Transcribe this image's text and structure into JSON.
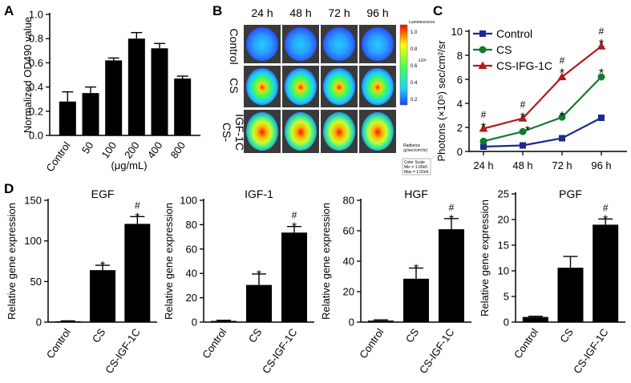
{
  "panel_labels": {
    "a": "A",
    "b": "B",
    "c": "C",
    "d": "D"
  },
  "panel_b": {
    "time_labels": [
      "24 h",
      "48 h",
      "72 h",
      "96 h"
    ],
    "row_labels": [
      "Control",
      "CS",
      "CS-IGF-1C"
    ],
    "row_label_lines": [
      [
        "Control"
      ],
      [
        "CS"
      ],
      [
        "CS-",
        "IGF-1C"
      ]
    ],
    "colorbar_ticks": [
      "1.0",
      "0.8",
      "0.6",
      "0.4",
      "0.2"
    ],
    "colorbar_title": "Luminescence",
    "colorbar_scale_text": "x10⁶",
    "colorbar_units": [
      "Radiance",
      "(p/sec/cm²/sr)"
    ],
    "colorbar_box": [
      "Color Scale",
      "Min = 1.00e5",
      "Max = 1.02e6"
    ]
  },
  "chart_data": [
    {
      "id": "A",
      "type": "bar",
      "title": "",
      "ylabel": "Normalized OD490 value",
      "xlabel": "(μg/mL)",
      "categories": [
        "Control",
        "50",
        "100",
        "200",
        "400",
        "800"
      ],
      "values": [
        0.28,
        0.35,
        0.62,
        0.8,
        0.72,
        0.47
      ],
      "errors": [
        0.08,
        0.05,
        0.02,
        0.05,
        0.04,
        0.02
      ],
      "ylim": [
        0,
        1.0
      ],
      "yticks": [
        "0.0",
        "0.2",
        "0.4",
        "0.6",
        "0.8",
        "1.0"
      ],
      "ytick_values": [
        0,
        0.2,
        0.4,
        0.6,
        0.8,
        1.0
      ]
    },
    {
      "id": "C",
      "type": "line",
      "ylabel": "Photons (×10⁵) sec/cm²/sr",
      "categories": [
        "24 h",
        "48 h",
        "72 h",
        "96 h"
      ],
      "ylim": [
        0,
        10
      ],
      "yticks": [
        "0",
        "2",
        "4",
        "6",
        "8",
        "10"
      ],
      "ytick_values": [
        0,
        2,
        4,
        6,
        8,
        10
      ],
      "series": [
        {
          "name": "Control",
          "color": "#1a2a8c",
          "marker": "square",
          "values": [
            0.4,
            0.5,
            1.1,
            2.8
          ],
          "errors": [
            0.05,
            0.05,
            0.1,
            0.15
          ]
        },
        {
          "name": "CS",
          "color": "#137a2f",
          "marker": "circle",
          "values": [
            0.85,
            1.65,
            2.85,
            6.2
          ],
          "errors": [
            0.05,
            0.1,
            0.1,
            0.3
          ]
        },
        {
          "name": "CS-IFG-1C",
          "color": "#b31b1b",
          "marker": "triangle",
          "values": [
            1.9,
            2.75,
            6.2,
            8.75
          ],
          "errors": [
            0.1,
            0.1,
            0.3,
            0.2
          ]
        }
      ],
      "annotations": [
        {
          "x": "24 h",
          "series": "CS-IFG-1C",
          "marks": [
            "#",
            "*"
          ]
        },
        {
          "x": "48 h",
          "series": "CS-IFG-1C",
          "marks": [
            "#",
            "*"
          ]
        },
        {
          "x": "48 h",
          "series": "CS",
          "marks": [
            "*"
          ]
        },
        {
          "x": "72 h",
          "series": "CS-IFG-1C",
          "marks": [
            "#",
            "*"
          ]
        },
        {
          "x": "72 h",
          "series": "CS",
          "marks": [
            "*"
          ]
        },
        {
          "x": "96 h",
          "series": "CS-IFG-1C",
          "marks": [
            "#",
            "*"
          ]
        },
        {
          "x": "96 h",
          "series": "CS",
          "marks": [
            "*"
          ]
        }
      ]
    },
    {
      "id": "D-EGF",
      "type": "bar",
      "title": "EGF",
      "ylabel": "Relative gene expression",
      "categories": [
        "Control",
        "CS",
        "CS-IGF-1C"
      ],
      "values": [
        1,
        64,
        121
      ],
      "errors": [
        0.5,
        6,
        9
      ],
      "marks": [
        [],
        [
          "*"
        ],
        [
          "#",
          "*"
        ]
      ],
      "ylim": [
        0,
        150
      ],
      "yticks": [
        "0",
        "50",
        "100",
        "150"
      ],
      "ytick_values": [
        0,
        50,
        100,
        150
      ]
    },
    {
      "id": "D-IGF1",
      "type": "bar",
      "title": "IGF-1",
      "ylabel": "Relative gene expression",
      "categories": [
        "Control",
        "CS",
        "CS-IGF-1C"
      ],
      "values": [
        1,
        30.5,
        73.5
      ],
      "errors": [
        0.5,
        9,
        5
      ],
      "marks": [
        [],
        [
          "*"
        ],
        [
          "#",
          "*"
        ]
      ],
      "ylim": [
        0,
        100
      ],
      "yticks": [
        "0",
        "20",
        "40",
        "60",
        "80",
        "100"
      ],
      "ytick_values": [
        0,
        20,
        40,
        60,
        80,
        100
      ]
    },
    {
      "id": "D-HGF",
      "type": "bar",
      "title": "HGF",
      "ylabel": "Relative gene expression",
      "categories": [
        "Control",
        "CS",
        "CS-IGF-1C"
      ],
      "values": [
        1,
        28.5,
        61
      ],
      "errors": [
        0.5,
        7,
        7
      ],
      "marks": [
        [],
        [
          "*"
        ],
        [
          "#",
          "*"
        ]
      ],
      "ylim": [
        0,
        80
      ],
      "yticks": [
        "0",
        "20",
        "40",
        "60",
        "80"
      ],
      "ytick_values": [
        0,
        20,
        40,
        60,
        80
      ]
    },
    {
      "id": "D-PGF",
      "type": "bar",
      "title": "PGF",
      "ylabel": "Relative gene expression",
      "categories": [
        "Control",
        "CS",
        "CS-IGF-1C"
      ],
      "values": [
        1,
        10.6,
        19
      ],
      "errors": [
        0.15,
        2.2,
        1.1
      ],
      "marks": [
        [],
        [],
        [
          "#",
          "*"
        ]
      ],
      "ylim": [
        0,
        25
      ],
      "yticks": [
        "0",
        "5",
        "10",
        "15",
        "20",
        "25"
      ],
      "ytick_values": [
        0,
        5,
        10,
        15,
        20,
        25
      ]
    }
  ]
}
